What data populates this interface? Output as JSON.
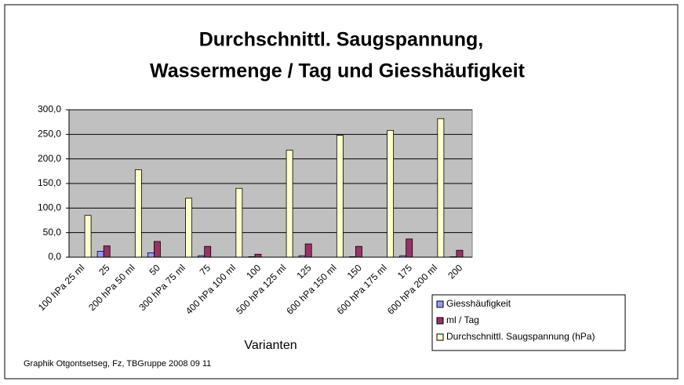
{
  "chart_data": {
    "type": "bar",
    "title": [
      "Durchschnittl. Saugspannung,",
      "Wassermenge / Tag und Giesshäufigkeit"
    ],
    "x_label": "Varianten",
    "annotation": "Graphik Otgontsetseg, Fz, TBGruppe 2008 09 11",
    "categories": [
      "100 hPa  25 ml",
      "25",
      "200 hPa  50 ml",
      "50",
      "300 hPa  75 ml",
      "75",
      "400 hPa 100 ml",
      "100",
      "500 hPa 125 ml",
      "125",
      "600 hPa 150 ml",
      "150",
      "600 hPa 175 ml",
      "175",
      "600 hPa 200 ml",
      "200"
    ],
    "series": [
      {
        "name": "Giesshäufigkeit",
        "color": "#9999ff",
        "values": [
          null,
          12,
          null,
          9,
          null,
          3,
          null,
          1,
          null,
          3,
          null,
          1,
          null,
          3,
          null,
          1
        ]
      },
      {
        "name": "ml / Tag",
        "color": "#993366",
        "values": [
          null,
          23,
          null,
          32,
          null,
          22,
          null,
          6,
          null,
          27,
          null,
          22,
          null,
          37,
          null,
          14
        ]
      },
      {
        "name": "Durchschnittl. Saugspannung (hPa)",
        "color": "#ffffcc",
        "values": [
          85,
          null,
          178,
          null,
          120,
          null,
          140,
          null,
          218,
          null,
          248,
          null,
          258,
          null,
          282,
          null
        ]
      }
    ],
    "ylim": [
      0,
      300
    ],
    "yticks": [
      {
        "value": 0,
        "label": "0,0"
      },
      {
        "value": 50,
        "label": "50,0"
      },
      {
        "value": 100,
        "label": "100,0"
      },
      {
        "value": 150,
        "label": "150,0"
      },
      {
        "value": 200,
        "label": "200,0"
      },
      {
        "value": 250,
        "label": "250,0"
      },
      {
        "value": 300,
        "label": "300,0"
      }
    ],
    "grid": true,
    "legend": "bottom-right"
  }
}
